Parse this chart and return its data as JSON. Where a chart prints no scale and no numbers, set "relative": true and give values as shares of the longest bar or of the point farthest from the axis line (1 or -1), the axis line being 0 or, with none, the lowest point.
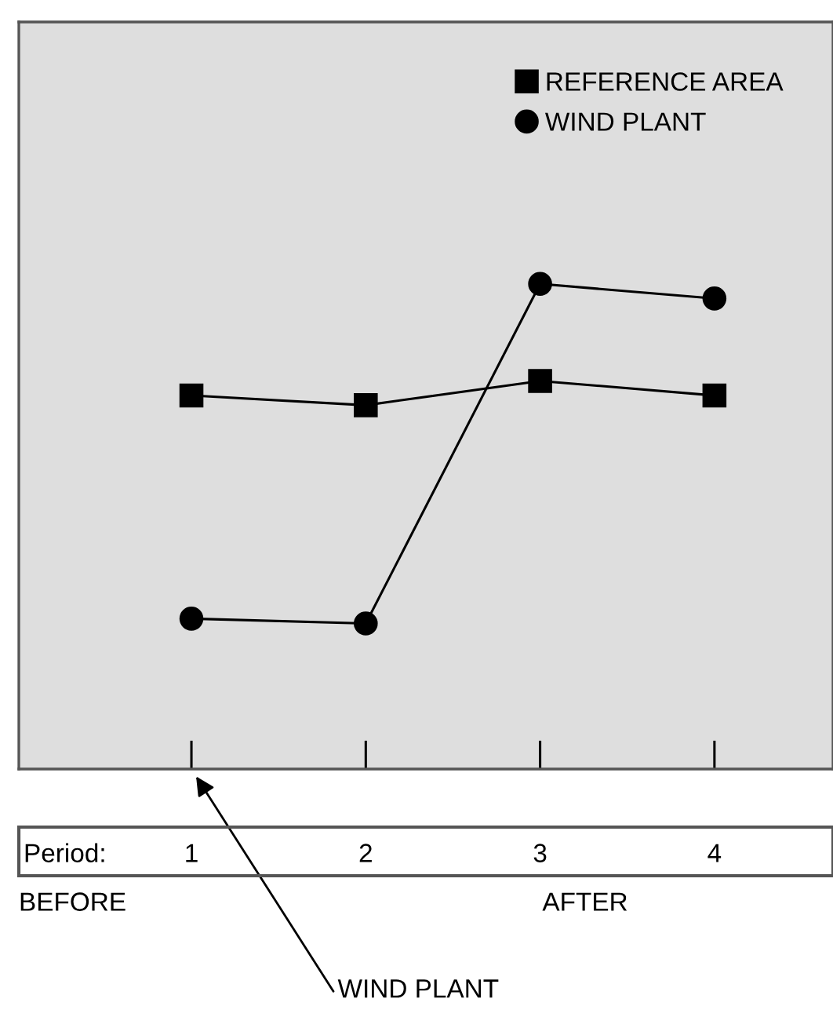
{
  "chart_data": {
    "type": "line",
    "relative": true,
    "xlabel": "Period:",
    "categories": [
      "1",
      "2",
      "3",
      "4"
    ],
    "series": [
      {
        "name": "REFERENCE AREA",
        "color": "#000000",
        "marker": "square",
        "values": [
          0.77,
          0.75,
          0.8,
          0.77
        ]
      },
      {
        "name": "WIND PLANT",
        "color": "#000000",
        "marker": "circle",
        "values": [
          0.31,
          0.3,
          1.0,
          0.97
        ]
      }
    ],
    "annotations": [
      "BEFORE",
      "AFTER",
      "WIND PLANT"
    ],
    "legend": "top right",
    "grid": false
  }
}
